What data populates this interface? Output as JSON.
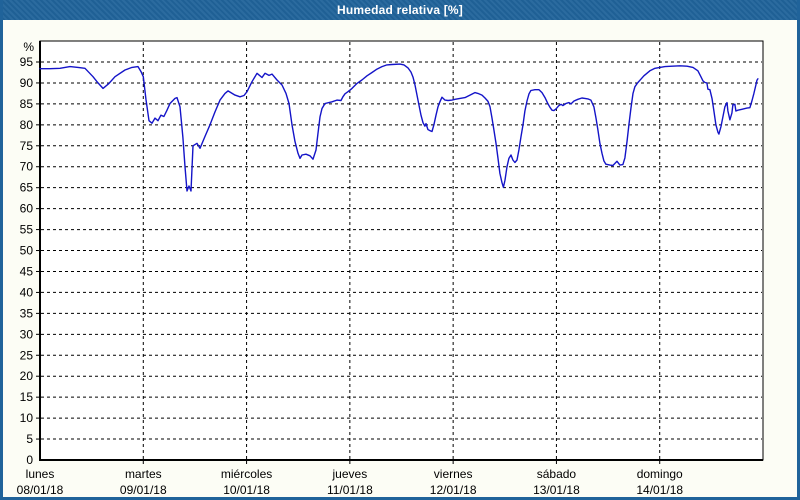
{
  "window": {
    "title": "Humedad relativa [%]"
  },
  "colors": {
    "frame": "#20639a",
    "titlebar": "#20639a",
    "background": "#fcfdf5",
    "plot_background": "#ffffff",
    "grid": "#000000",
    "line": "#1414c8",
    "axis_text": "#000000",
    "title_text": "#ffffff"
  },
  "chart_data": {
    "type": "line",
    "title": "Humedad relativa [%]",
    "y_unit_label": "%",
    "ylabel": "Humedad relativa [%]",
    "ylim": [
      0,
      95
    ],
    "ytick_step": 5,
    "grid": "dashed horizontal every 5%, dashed vertical at each day boundary",
    "legend": "none",
    "x_axis": {
      "range_days": [
        0,
        7
      ],
      "days": [
        {
          "name": "lunes",
          "date": "08/01/18"
        },
        {
          "name": "martes",
          "date": "09/01/18"
        },
        {
          "name": "miércoles",
          "date": "10/01/18"
        },
        {
          "name": "jueves",
          "date": "11/01/18"
        },
        {
          "name": "viernes",
          "date": "12/01/18"
        },
        {
          "name": "sábado",
          "date": "13/01/18"
        },
        {
          "name": "domingo",
          "date": "14/01/18"
        }
      ]
    },
    "series": [
      {
        "name": "Humedad relativa",
        "color": "#1414c8",
        "points": [
          [
            0.0,
            93.4
          ],
          [
            0.097,
            93.4
          ],
          [
            0.194,
            93.5
          ],
          [
            0.29,
            93.9
          ],
          [
            0.368,
            93.7
          ],
          [
            0.436,
            93.5
          ],
          [
            0.513,
            91.5
          ],
          [
            0.562,
            90.0
          ],
          [
            0.61,
            88.7
          ],
          [
            0.668,
            89.9
          ],
          [
            0.726,
            91.5
          ],
          [
            0.823,
            93.1
          ],
          [
            0.891,
            93.7
          ],
          [
            0.949,
            93.9
          ],
          [
            0.978,
            92.7
          ],
          [
            1.0,
            91.5
          ],
          [
            1.026,
            86.0
          ],
          [
            1.055,
            81.0
          ],
          [
            1.084,
            80.4
          ],
          [
            1.113,
            81.6
          ],
          [
            1.142,
            81.0
          ],
          [
            1.171,
            82.3
          ],
          [
            1.2,
            82.0
          ],
          [
            1.23,
            83.5
          ],
          [
            1.259,
            85.1
          ],
          [
            1.307,
            86.3
          ],
          [
            1.326,
            86.5
          ],
          [
            1.355,
            84.3
          ],
          [
            1.384,
            77.0
          ],
          [
            1.404,
            70.0
          ],
          [
            1.423,
            64.2
          ],
          [
            1.443,
            65.4
          ],
          [
            1.462,
            64.2
          ],
          [
            1.481,
            75.0
          ],
          [
            1.52,
            75.6
          ],
          [
            1.549,
            74.4
          ],
          [
            1.597,
            77.2
          ],
          [
            1.646,
            80.0
          ],
          [
            1.694,
            83.1
          ],
          [
            1.743,
            85.9
          ],
          [
            1.791,
            87.5
          ],
          [
            1.82,
            88.1
          ],
          [
            1.888,
            87.1
          ],
          [
            1.936,
            86.7
          ],
          [
            1.975,
            87.0
          ],
          [
            2.004,
            87.9
          ],
          [
            2.053,
            90.3
          ],
          [
            2.101,
            92.3
          ],
          [
            2.149,
            91.3
          ],
          [
            2.178,
            92.3
          ],
          [
            2.217,
            91.8
          ],
          [
            2.246,
            92.1
          ],
          [
            2.295,
            90.7
          ],
          [
            2.343,
            89.5
          ],
          [
            2.382,
            87.5
          ],
          [
            2.411,
            85.1
          ],
          [
            2.44,
            80.0
          ],
          [
            2.469,
            76.0
          ],
          [
            2.498,
            73.2
          ],
          [
            2.517,
            72.0
          ],
          [
            2.537,
            72.8
          ],
          [
            2.575,
            73.0
          ],
          [
            2.614,
            72.6
          ],
          [
            2.643,
            71.8
          ],
          [
            2.672,
            74.0
          ],
          [
            2.692,
            78.0
          ],
          [
            2.711,
            81.9
          ],
          [
            2.73,
            83.9
          ],
          [
            2.759,
            85.1
          ],
          [
            2.827,
            85.5
          ],
          [
            2.875,
            85.9
          ],
          [
            2.914,
            85.8
          ],
          [
            2.933,
            86.7
          ],
          [
            2.953,
            87.4
          ],
          [
            2.982,
            87.9
          ],
          [
            3.021,
            88.7
          ],
          [
            3.069,
            89.9
          ],
          [
            3.117,
            90.7
          ],
          [
            3.166,
            91.7
          ],
          [
            3.214,
            92.5
          ],
          [
            3.263,
            93.3
          ],
          [
            3.311,
            93.9
          ],
          [
            3.359,
            94.3
          ],
          [
            3.408,
            94.4
          ],
          [
            3.485,
            94.5
          ],
          [
            3.524,
            94.3
          ],
          [
            3.563,
            93.6
          ],
          [
            3.592,
            92.6
          ],
          [
            3.611,
            91.4
          ],
          [
            3.631,
            89.5
          ],
          [
            3.65,
            87.1
          ],
          [
            3.669,
            84.7
          ],
          [
            3.689,
            82.3
          ],
          [
            3.708,
            80.5
          ],
          [
            3.727,
            79.7
          ],
          [
            3.737,
            80.3
          ],
          [
            3.756,
            78.9
          ],
          [
            3.776,
            78.6
          ],
          [
            3.795,
            78.4
          ],
          [
            3.814,
            80.0
          ],
          [
            3.834,
            82.3
          ],
          [
            3.853,
            84.3
          ],
          [
            3.872,
            85.5
          ],
          [
            3.892,
            86.6
          ],
          [
            3.921,
            85.9
          ],
          [
            3.95,
            85.8
          ],
          [
            3.989,
            85.9
          ],
          [
            4.018,
            86.1
          ],
          [
            4.066,
            86.3
          ],
          [
            4.115,
            86.5
          ],
          [
            4.163,
            87.1
          ],
          [
            4.211,
            87.7
          ],
          [
            4.24,
            87.5
          ],
          [
            4.279,
            87.1
          ],
          [
            4.308,
            86.4
          ],
          [
            4.337,
            85.6
          ],
          [
            4.357,
            84.3
          ],
          [
            4.376,
            81.6
          ],
          [
            4.395,
            78.8
          ],
          [
            4.415,
            75.6
          ],
          [
            4.434,
            72.0
          ],
          [
            4.453,
            68.4
          ],
          [
            4.473,
            66.2
          ],
          [
            4.487,
            65.1
          ],
          [
            4.502,
            66.8
          ],
          [
            4.521,
            70.0
          ],
          [
            4.54,
            72.0
          ],
          [
            4.56,
            72.8
          ],
          [
            4.579,
            71.6
          ],
          [
            4.598,
            71.0
          ],
          [
            4.618,
            71.6
          ],
          [
            4.637,
            74.0
          ],
          [
            4.657,
            77.2
          ],
          [
            4.676,
            80.0
          ],
          [
            4.695,
            83.3
          ],
          [
            4.715,
            85.7
          ],
          [
            4.734,
            87.4
          ],
          [
            4.753,
            88.2
          ],
          [
            4.792,
            88.4
          ],
          [
            4.831,
            88.4
          ],
          [
            4.86,
            87.7
          ],
          [
            4.889,
            86.5
          ],
          [
            4.918,
            85.0
          ],
          [
            4.937,
            84.2
          ],
          [
            4.957,
            83.5
          ],
          [
            4.976,
            83.4
          ],
          [
            4.996,
            83.8
          ],
          [
            5.024,
            84.6
          ],
          [
            5.044,
            84.9
          ],
          [
            5.063,
            84.6
          ],
          [
            5.092,
            85.1
          ],
          [
            5.121,
            85.3
          ],
          [
            5.141,
            85.0
          ],
          [
            5.17,
            85.7
          ],
          [
            5.208,
            86.1
          ],
          [
            5.247,
            86.4
          ],
          [
            5.276,
            86.3
          ],
          [
            5.305,
            86.2
          ],
          [
            5.334,
            85.9
          ],
          [
            5.363,
            84.3
          ],
          [
            5.383,
            81.6
          ],
          [
            5.402,
            78.8
          ],
          [
            5.421,
            75.6
          ],
          [
            5.441,
            73.2
          ],
          [
            5.46,
            71.4
          ],
          [
            5.479,
            70.6
          ],
          [
            5.518,
            70.4
          ],
          [
            5.547,
            70.3
          ],
          [
            5.586,
            71.3
          ],
          [
            5.615,
            70.4
          ],
          [
            5.644,
            70.5
          ],
          [
            5.663,
            72.1
          ],
          [
            5.683,
            76.0
          ],
          [
            5.702,
            80.0
          ],
          [
            5.721,
            83.9
          ],
          [
            5.741,
            87.5
          ],
          [
            5.76,
            89.1
          ],
          [
            5.789,
            90.1
          ],
          [
            5.818,
            90.9
          ],
          [
            5.847,
            91.7
          ],
          [
            5.905,
            92.9
          ],
          [
            5.954,
            93.5
          ],
          [
            6.002,
            93.7
          ],
          [
            6.051,
            93.9
          ],
          [
            6.119,
            94.0
          ],
          [
            6.196,
            94.1
          ],
          [
            6.264,
            94.0
          ],
          [
            6.322,
            93.7
          ],
          [
            6.37,
            92.9
          ],
          [
            6.399,
            91.5
          ],
          [
            6.419,
            90.5
          ],
          [
            6.438,
            90.1
          ],
          [
            6.457,
            90.0
          ],
          [
            6.467,
            88.5
          ],
          [
            6.486,
            88.4
          ],
          [
            6.506,
            86.3
          ],
          [
            6.525,
            83.3
          ],
          [
            6.544,
            80.0
          ],
          [
            6.564,
            78.2
          ],
          [
            6.573,
            77.8
          ],
          [
            6.593,
            79.6
          ],
          [
            6.612,
            81.9
          ],
          [
            6.631,
            84.3
          ],
          [
            6.651,
            85.3
          ],
          [
            6.66,
            83.3
          ],
          [
            6.68,
            81.2
          ],
          [
            6.699,
            82.8
          ],
          [
            6.709,
            84.8
          ],
          [
            6.728,
            84.9
          ],
          [
            6.738,
            83.3
          ],
          [
            6.757,
            83.5
          ],
          [
            6.796,
            83.7
          ],
          [
            6.844,
            84.0
          ],
          [
            6.873,
            84.1
          ],
          [
            6.893,
            85.7
          ],
          [
            6.912,
            87.5
          ],
          [
            6.931,
            89.5
          ],
          [
            6.941,
            90.6
          ],
          [
            6.951,
            91.0
          ]
        ]
      }
    ]
  }
}
